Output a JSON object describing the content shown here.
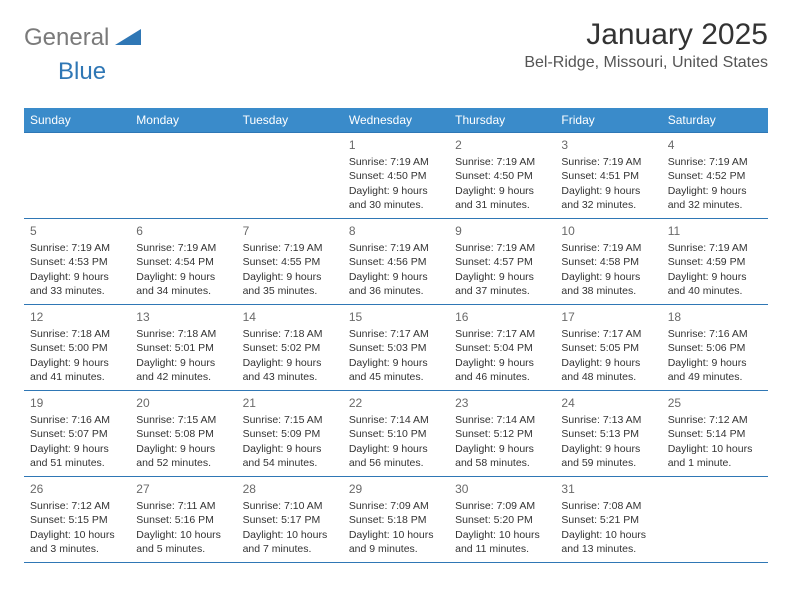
{
  "brand": {
    "text_a": "General",
    "text_b": "Blue"
  },
  "title": "January 2025",
  "location": "Bel-Ridge, Missouri, United States",
  "colors": {
    "header_bg": "#3a8bca",
    "rule": "#2f77b5",
    "text": "#333333",
    "muted": "#6a6a6a",
    "logo_gray": "#7a7a7a",
    "logo_blue": "#2f77b5",
    "page_bg": "#ffffff"
  },
  "day_headers": [
    "Sunday",
    "Monday",
    "Tuesday",
    "Wednesday",
    "Thursday",
    "Friday",
    "Saturday"
  ],
  "weeks": [
    [
      {
        "n": "",
        "sr": "",
        "ss": "",
        "dl": ""
      },
      {
        "n": "",
        "sr": "",
        "ss": "",
        "dl": ""
      },
      {
        "n": "",
        "sr": "",
        "ss": "",
        "dl": ""
      },
      {
        "n": "1",
        "sr": "7:19 AM",
        "ss": "4:50 PM",
        "dl": "9 hours and 30 minutes."
      },
      {
        "n": "2",
        "sr": "7:19 AM",
        "ss": "4:50 PM",
        "dl": "9 hours and 31 minutes."
      },
      {
        "n": "3",
        "sr": "7:19 AM",
        "ss": "4:51 PM",
        "dl": "9 hours and 32 minutes."
      },
      {
        "n": "4",
        "sr": "7:19 AM",
        "ss": "4:52 PM",
        "dl": "9 hours and 32 minutes."
      }
    ],
    [
      {
        "n": "5",
        "sr": "7:19 AM",
        "ss": "4:53 PM",
        "dl": "9 hours and 33 minutes."
      },
      {
        "n": "6",
        "sr": "7:19 AM",
        "ss": "4:54 PM",
        "dl": "9 hours and 34 minutes."
      },
      {
        "n": "7",
        "sr": "7:19 AM",
        "ss": "4:55 PM",
        "dl": "9 hours and 35 minutes."
      },
      {
        "n": "8",
        "sr": "7:19 AM",
        "ss": "4:56 PM",
        "dl": "9 hours and 36 minutes."
      },
      {
        "n": "9",
        "sr": "7:19 AM",
        "ss": "4:57 PM",
        "dl": "9 hours and 37 minutes."
      },
      {
        "n": "10",
        "sr": "7:19 AM",
        "ss": "4:58 PM",
        "dl": "9 hours and 38 minutes."
      },
      {
        "n": "11",
        "sr": "7:19 AM",
        "ss": "4:59 PM",
        "dl": "9 hours and 40 minutes."
      }
    ],
    [
      {
        "n": "12",
        "sr": "7:18 AM",
        "ss": "5:00 PM",
        "dl": "9 hours and 41 minutes."
      },
      {
        "n": "13",
        "sr": "7:18 AM",
        "ss": "5:01 PM",
        "dl": "9 hours and 42 minutes."
      },
      {
        "n": "14",
        "sr": "7:18 AM",
        "ss": "5:02 PM",
        "dl": "9 hours and 43 minutes."
      },
      {
        "n": "15",
        "sr": "7:17 AM",
        "ss": "5:03 PM",
        "dl": "9 hours and 45 minutes."
      },
      {
        "n": "16",
        "sr": "7:17 AM",
        "ss": "5:04 PM",
        "dl": "9 hours and 46 minutes."
      },
      {
        "n": "17",
        "sr": "7:17 AM",
        "ss": "5:05 PM",
        "dl": "9 hours and 48 minutes."
      },
      {
        "n": "18",
        "sr": "7:16 AM",
        "ss": "5:06 PM",
        "dl": "9 hours and 49 minutes."
      }
    ],
    [
      {
        "n": "19",
        "sr": "7:16 AM",
        "ss": "5:07 PM",
        "dl": "9 hours and 51 minutes."
      },
      {
        "n": "20",
        "sr": "7:15 AM",
        "ss": "5:08 PM",
        "dl": "9 hours and 52 minutes."
      },
      {
        "n": "21",
        "sr": "7:15 AM",
        "ss": "5:09 PM",
        "dl": "9 hours and 54 minutes."
      },
      {
        "n": "22",
        "sr": "7:14 AM",
        "ss": "5:10 PM",
        "dl": "9 hours and 56 minutes."
      },
      {
        "n": "23",
        "sr": "7:14 AM",
        "ss": "5:12 PM",
        "dl": "9 hours and 58 minutes."
      },
      {
        "n": "24",
        "sr": "7:13 AM",
        "ss": "5:13 PM",
        "dl": "9 hours and 59 minutes."
      },
      {
        "n": "25",
        "sr": "7:12 AM",
        "ss": "5:14 PM",
        "dl": "10 hours and 1 minute."
      }
    ],
    [
      {
        "n": "26",
        "sr": "7:12 AM",
        "ss": "5:15 PM",
        "dl": "10 hours and 3 minutes."
      },
      {
        "n": "27",
        "sr": "7:11 AM",
        "ss": "5:16 PM",
        "dl": "10 hours and 5 minutes."
      },
      {
        "n": "28",
        "sr": "7:10 AM",
        "ss": "5:17 PM",
        "dl": "10 hours and 7 minutes."
      },
      {
        "n": "29",
        "sr": "7:09 AM",
        "ss": "5:18 PM",
        "dl": "10 hours and 9 minutes."
      },
      {
        "n": "30",
        "sr": "7:09 AM",
        "ss": "5:20 PM",
        "dl": "10 hours and 11 minutes."
      },
      {
        "n": "31",
        "sr": "7:08 AM",
        "ss": "5:21 PM",
        "dl": "10 hours and 13 minutes."
      },
      {
        "n": "",
        "sr": "",
        "ss": "",
        "dl": ""
      }
    ]
  ],
  "labels": {
    "sunrise": "Sunrise:",
    "sunset": "Sunset:",
    "daylight": "Daylight:"
  }
}
